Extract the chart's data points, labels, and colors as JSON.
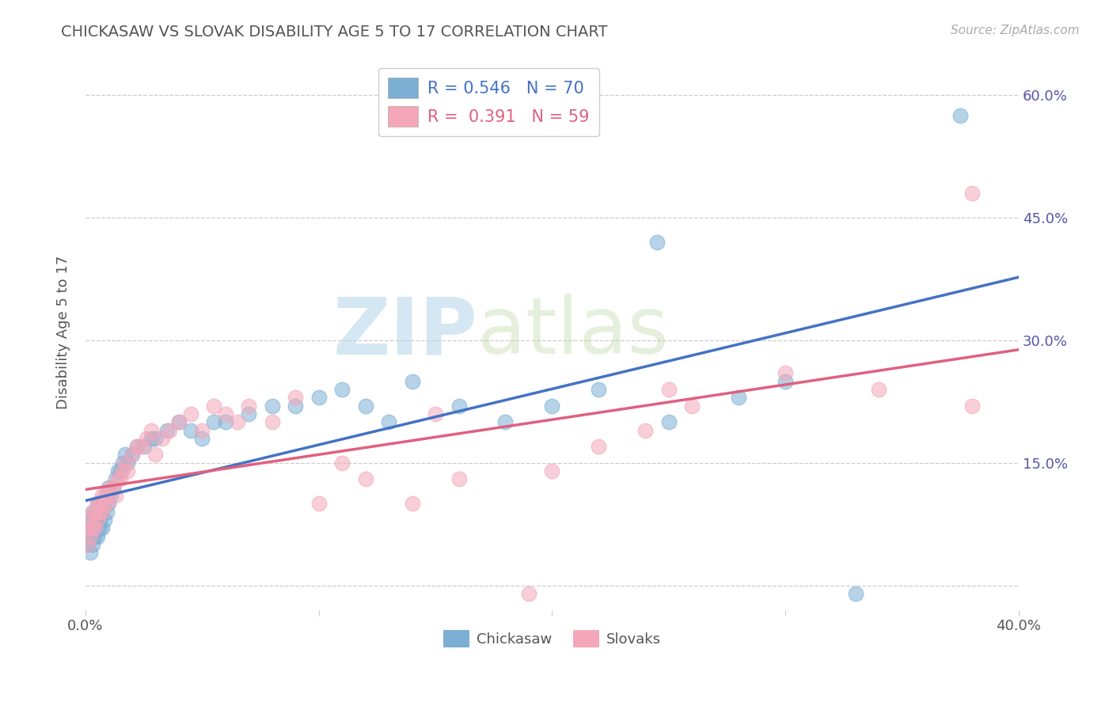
{
  "title": "CHICKASAW VS SLOVAK DISABILITY AGE 5 TO 17 CORRELATION CHART",
  "source_text": "Source: ZipAtlas.com",
  "ylabel": "Disability Age 5 to 17",
  "xlim": [
    0.0,
    0.4
  ],
  "ylim": [
    -0.03,
    0.65
  ],
  "ytick_positions": [
    0.0,
    0.15,
    0.3,
    0.45,
    0.6
  ],
  "yticklabels_right": [
    "",
    "15.0%",
    "30.0%",
    "45.0%",
    "60.0%"
  ],
  "chickasaw_color": "#7bafd4",
  "slovak_color": "#f4a7b9",
  "chickasaw_line_color": "#4472c4",
  "slovak_line_color": "#e06080",
  "R_chickasaw": 0.546,
  "N_chickasaw": 70,
  "R_slovak": 0.391,
  "N_slovak": 59,
  "legend_label_1": "Chickasaw",
  "legend_label_2": "Slovaks",
  "watermark_zip": "ZIP",
  "watermark_atlas": "atlas",
  "background_color": "#ffffff",
  "grid_color": "#cccccc",
  "title_color": "#555555",
  "legend_text_color": "#4472c4",
  "chickasaw_x": [
    0.001,
    0.001,
    0.001,
    0.002,
    0.002,
    0.002,
    0.002,
    0.003,
    0.003,
    0.003,
    0.003,
    0.003,
    0.004,
    0.004,
    0.004,
    0.004,
    0.005,
    0.005,
    0.005,
    0.005,
    0.006,
    0.006,
    0.006,
    0.006,
    0.007,
    0.007,
    0.007,
    0.008,
    0.008,
    0.009,
    0.009,
    0.01,
    0.01,
    0.011,
    0.012,
    0.013,
    0.014,
    0.015,
    0.016,
    0.017,
    0.018,
    0.02,
    0.022,
    0.025,
    0.028,
    0.03,
    0.035,
    0.04,
    0.045,
    0.05,
    0.055,
    0.06,
    0.07,
    0.08,
    0.09,
    0.1,
    0.11,
    0.12,
    0.13,
    0.14,
    0.16,
    0.18,
    0.2,
    0.22,
    0.25,
    0.28,
    0.3,
    0.33,
    0.245,
    0.375
  ],
  "chickasaw_y": [
    0.05,
    0.06,
    0.07,
    0.04,
    0.06,
    0.07,
    0.08,
    0.05,
    0.06,
    0.07,
    0.08,
    0.09,
    0.06,
    0.07,
    0.08,
    0.09,
    0.06,
    0.07,
    0.08,
    0.1,
    0.07,
    0.08,
    0.09,
    0.1,
    0.07,
    0.09,
    0.1,
    0.08,
    0.1,
    0.09,
    0.11,
    0.1,
    0.12,
    0.11,
    0.12,
    0.13,
    0.14,
    0.14,
    0.15,
    0.16,
    0.15,
    0.16,
    0.17,
    0.17,
    0.18,
    0.18,
    0.19,
    0.2,
    0.19,
    0.18,
    0.2,
    0.2,
    0.21,
    0.22,
    0.22,
    0.23,
    0.24,
    0.22,
    0.2,
    0.25,
    0.22,
    0.2,
    0.22,
    0.24,
    0.2,
    0.23,
    0.25,
    -0.01,
    0.42,
    0.575
  ],
  "slovak_x": [
    0.001,
    0.001,
    0.002,
    0.002,
    0.003,
    0.003,
    0.004,
    0.004,
    0.005,
    0.005,
    0.006,
    0.006,
    0.007,
    0.007,
    0.008,
    0.008,
    0.009,
    0.01,
    0.011,
    0.012,
    0.013,
    0.014,
    0.015,
    0.016,
    0.017,
    0.018,
    0.02,
    0.022,
    0.024,
    0.026,
    0.028,
    0.03,
    0.033,
    0.036,
    0.04,
    0.045,
    0.05,
    0.055,
    0.06,
    0.065,
    0.07,
    0.08,
    0.09,
    0.1,
    0.11,
    0.12,
    0.14,
    0.16,
    0.2,
    0.22,
    0.24,
    0.26,
    0.3,
    0.34,
    0.38,
    0.15,
    0.19,
    0.25,
    0.38
  ],
  "slovak_y": [
    0.05,
    0.07,
    0.06,
    0.08,
    0.07,
    0.09,
    0.07,
    0.09,
    0.08,
    0.1,
    0.09,
    0.1,
    0.09,
    0.11,
    0.1,
    0.11,
    0.1,
    0.11,
    0.12,
    0.12,
    0.11,
    0.13,
    0.13,
    0.14,
    0.15,
    0.14,
    0.16,
    0.17,
    0.17,
    0.18,
    0.19,
    0.16,
    0.18,
    0.19,
    0.2,
    0.21,
    0.19,
    0.22,
    0.21,
    0.2,
    0.22,
    0.2,
    0.23,
    0.1,
    0.15,
    0.13,
    0.1,
    0.13,
    0.14,
    0.17,
    0.19,
    0.22,
    0.26,
    0.24,
    0.22,
    0.21,
    -0.01,
    0.24,
    0.48
  ]
}
